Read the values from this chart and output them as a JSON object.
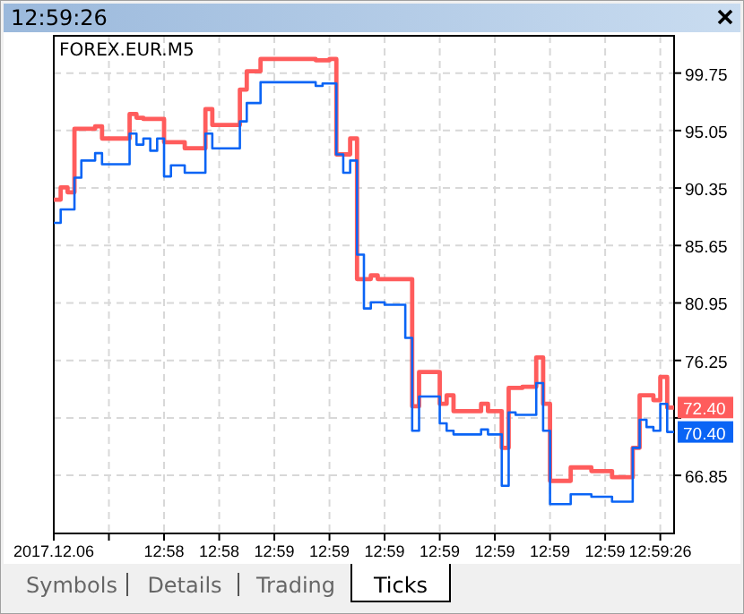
{
  "chart_data": {
    "type": "step",
    "title": "12:59:26",
    "subtitle": "FOREX.EUR.M5",
    "annotations": [
      "Symbols",
      "Details",
      "Trading",
      "Ticks"
    ],
    "categories": [
      "2017.12.06",
      null,
      null,
      null,
      null,
      null,
      null,
      null,
      null,
      null,
      null,
      null,
      null,
      null,
      null,
      null,
      "12:58",
      null,
      null,
      null,
      null,
      null,
      null,
      null,
      "12:58",
      null,
      null,
      null,
      null,
      null,
      null,
      null,
      "12:59",
      null,
      null,
      null,
      null,
      null,
      null,
      null,
      "12:59",
      null,
      null,
      null,
      null,
      null,
      null,
      null,
      "12:59",
      null,
      null,
      null,
      null,
      null,
      null,
      null,
      "12:59",
      null,
      null,
      null,
      null,
      null,
      null,
      null,
      "12:59",
      null,
      null,
      null,
      null,
      null,
      null,
      null,
      "12:59",
      null,
      null,
      null,
      null,
      null,
      null,
      null,
      "12:59",
      null,
      null,
      null,
      null,
      null,
      null,
      null,
      "12:59:26",
      null,
      null
    ],
    "series": [
      {
        "color": "#ff5c5c",
        "values": [
          89.4,
          90.4,
          90.0,
          95.2,
          95.2,
          95.2,
          95.4,
          94.4,
          94.4,
          94.4,
          94.4,
          96.4,
          96.1,
          96.0,
          96.0,
          96.0,
          94.1,
          94.1,
          94.1,
          93.6,
          93.6,
          93.6,
          96.8,
          95.5,
          95.5,
          95.5,
          95.5,
          98.4,
          99.9,
          99.9,
          100.9,
          100.9,
          100.9,
          100.9,
          100.9,
          100.9,
          100.9,
          100.9,
          100.8,
          100.8,
          100.9,
          93.1,
          93.1,
          94.4,
          82.9,
          82.9,
          83.2,
          82.9,
          82.9,
          82.9,
          82.9,
          82.9,
          72.5,
          75.3,
          75.3,
          75.3,
          72.7,
          73.4,
          72.1,
          72.1,
          72.1,
          72.1,
          72.7,
          72.1,
          72.1,
          69.1,
          74.0,
          74.0,
          74.1,
          74.1,
          76.5,
          72.7,
          66.4,
          66.4,
          66.4,
          67.5,
          67.5,
          67.5,
          67.2,
          67.2,
          67.2,
          66.7,
          66.7,
          66.7,
          69.1,
          73.4,
          73.4,
          73.0,
          74.9,
          72.4,
          72.4
        ],
        "value_labels": [
          null,
          null,
          null,
          null,
          null,
          null,
          null,
          null,
          null,
          null,
          null,
          null,
          null,
          null,
          null,
          null,
          null,
          null,
          null,
          null,
          null,
          null,
          null,
          null,
          null,
          null,
          null,
          null,
          null,
          null,
          null,
          null,
          null,
          null,
          null,
          null,
          null,
          null,
          null,
          null,
          null,
          null,
          null,
          null,
          null,
          null,
          null,
          null,
          null,
          null,
          null,
          null,
          null,
          null,
          null,
          null,
          null,
          null,
          null,
          null,
          null,
          null,
          null,
          null,
          null,
          null,
          null,
          null,
          null,
          null,
          null,
          null,
          null,
          null,
          null,
          null,
          null,
          null,
          null,
          null,
          null,
          null,
          null,
          null,
          null,
          null,
          null,
          null,
          null,
          null,
          "72.40"
        ]
      },
      {
        "color": "#0a64f5",
        "values": [
          87.5,
          88.6,
          88.6,
          91.2,
          92.6,
          92.6,
          93.2,
          92.3,
          92.3,
          92.3,
          92.3,
          94.8,
          93.9,
          94.4,
          93.4,
          94.4,
          91.3,
          92.2,
          92.2,
          91.6,
          91.6,
          91.6,
          94.8,
          93.6,
          93.6,
          93.6,
          93.6,
          95.8,
          97.3,
          97.3,
          99.0,
          99.0,
          99.0,
          99.0,
          99.0,
          99.0,
          99.0,
          99.0,
          98.7,
          98.9,
          98.9,
          93.1,
          91.6,
          92.6,
          84.9,
          80.5,
          81.0,
          81.0,
          80.8,
          80.8,
          80.8,
          78.1,
          70.5,
          73.3,
          73.3,
          73.3,
          71.1,
          70.5,
          70.2,
          70.2,
          70.2,
          70.2,
          70.6,
          70.2,
          70.2,
          66.0,
          72.0,
          71.8,
          71.8,
          71.8,
          74.4,
          70.5,
          64.5,
          64.5,
          64.5,
          65.3,
          65.3,
          65.3,
          65.1,
          65.1,
          65.1,
          64.7,
          64.7,
          64.7,
          69.1,
          71.4,
          70.8,
          70.5,
          72.7,
          70.4,
          70.4
        ],
        "value_labels": [
          null,
          null,
          null,
          null,
          null,
          null,
          null,
          null,
          null,
          null,
          null,
          null,
          null,
          null,
          null,
          null,
          null,
          null,
          null,
          null,
          null,
          null,
          null,
          null,
          null,
          null,
          null,
          null,
          null,
          null,
          null,
          null,
          null,
          null,
          null,
          null,
          null,
          null,
          null,
          null,
          null,
          null,
          null,
          null,
          null,
          null,
          null,
          null,
          null,
          null,
          null,
          null,
          null,
          null,
          null,
          null,
          null,
          null,
          null,
          null,
          null,
          null,
          null,
          null,
          null,
          null,
          null,
          null,
          null,
          null,
          null,
          null,
          null,
          null,
          null,
          null,
          null,
          null,
          null,
          null,
          null,
          null,
          null,
          null,
          null,
          null,
          null,
          null,
          null,
          null,
          "70.40"
        ]
      }
    ],
    "ylim": [
      62.1,
      102.8
    ],
    "yticks": [
      {
        "value": 66.85,
        "label": "66.85"
      },
      {
        "value": 71.55,
        "label": null
      },
      {
        "value": 76.25,
        "label": "76.25"
      },
      {
        "value": 80.95,
        "label": "80.95"
      },
      {
        "value": 85.65,
        "label": "85.65"
      },
      {
        "value": 90.35,
        "label": "90.35"
      },
      {
        "value": 95.05,
        "label": "95.05"
      },
      {
        "value": 99.75,
        "label": "99.75"
      }
    ],
    "grid": true,
    "line_style": "solid",
    "marker": "none"
  }
}
